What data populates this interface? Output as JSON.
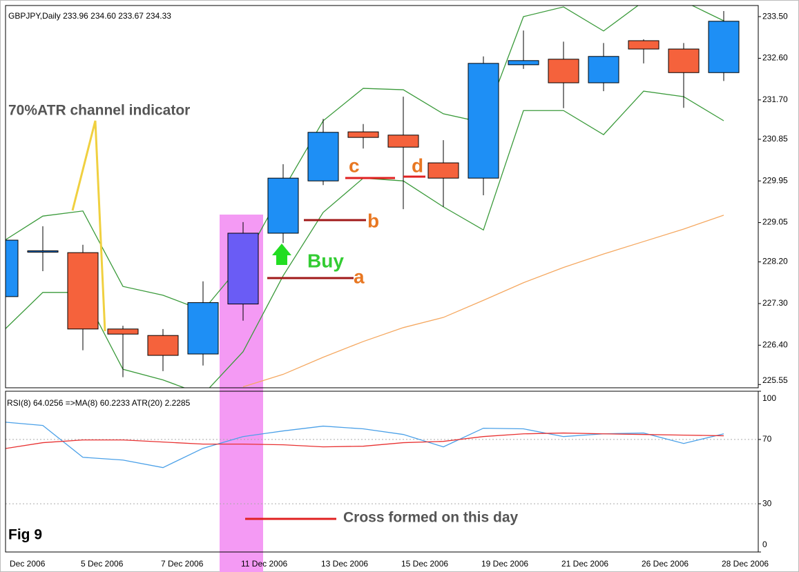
{
  "chart_data": [
    {
      "type": "candlestick",
      "title": "GBPJPY,Daily  233.96 234.60 233.67 234.33",
      "categories": [
        "Dec 2006",
        null,
        "5 Dec 2006",
        null,
        "7 Dec 2006",
        null,
        "11 Dec 2006",
        null,
        "13 Dec 2006",
        null,
        "15 Dec 2006",
        null,
        "19 Dec 2006",
        null,
        "21 Dec 2006",
        null,
        "26 Dec 2006",
        null,
        "28 Dec 2006"
      ],
      "open": [
        227.45,
        228.42,
        228.4,
        226.75,
        226.61,
        226.21,
        227.29,
        228.82,
        229.95,
        231.01,
        230.94,
        230.34,
        230.01,
        232.46,
        232.58,
        232.07,
        232.98,
        232.8,
        232.29
      ],
      "high": [
        228.7,
        228.97,
        228.57,
        226.82,
        226.75,
        227.78,
        229.06,
        230.31,
        231.29,
        231.18,
        231.77,
        230.83,
        232.64,
        233.2,
        232.96,
        232.93,
        233.01,
        232.93,
        233.62
      ],
      "low": [
        227.4,
        228.0,
        226.29,
        225.71,
        225.84,
        225.96,
        226.93,
        228.61,
        229.86,
        230.65,
        229.34,
        229.39,
        229.64,
        232.37,
        231.52,
        231.89,
        232.49,
        231.53,
        232.11
      ],
      "close": [
        228.67,
        228.44,
        226.75,
        226.64,
        226.18,
        227.32,
        228.82,
        230.01,
        231.0,
        230.89,
        230.68,
        230.01,
        232.49,
        232.55,
        232.07,
        232.64,
        232.8,
        232.29,
        233.4
      ],
      "colors": [
        "#1e8ff5",
        "#1e6fc8",
        "#f5623c",
        "#f5623c",
        "#f5623c",
        "#1e8ff5",
        "#6a5cf5",
        "#1e8ff5",
        "#1e8ff5",
        "#f5623c",
        "#f5623c",
        "#f5623c",
        "#1e8ff5",
        "#1e8ff5",
        "#f5623c",
        "#1e8ff5",
        "#f5623c",
        "#f5623c",
        "#1e8ff5"
      ],
      "overlays": [
        {
          "color": "#3a9a3a",
          "values": [
            228.64,
            229.19,
            229.3,
            227.67,
            227.48,
            227.15,
            228.19,
            229.76,
            231.25,
            231.95,
            231.92,
            231.4,
            231.21,
            233.5,
            233.71,
            233.19,
            233.83,
            233.83,
            233.41
          ]
        },
        {
          "color": "#3a9a3a",
          "values": [
            226.7,
            227.54,
            227.54,
            225.88,
            225.65,
            225.33,
            226.26,
            227.9,
            229.27,
            230.01,
            229.95,
            229.39,
            228.89,
            231.47,
            231.47,
            230.95,
            231.89,
            231.77,
            231.25
          ]
        },
        {
          "color": "#f5a860",
          "values": [
            null,
            null,
            null,
            null,
            null,
            null,
            225.5,
            225.77,
            226.14,
            226.48,
            226.78,
            227.0,
            227.37,
            227.75,
            228.08,
            228.37,
            228.64,
            228.91,
            229.21
          ]
        }
      ],
      "ylim": [
        225.48,
        233.74
      ],
      "yticks": [
        {
          "value": 233.5,
          "label": "233.50"
        },
        {
          "value": 232.6,
          "label": "232.60"
        },
        {
          "value": 231.7,
          "label": "231.70"
        },
        230.85,
        229.95,
        229.05,
        {
          "value": 228.2,
          "label": "228.20"
        },
        {
          "value": 227.3,
          "label": "227.30"
        },
        {
          "value": 226.4,
          "label": "226.40"
        },
        225.55
      ],
      "annotations": [
        "70%ATR channel indicator",
        "Buy",
        "a",
        "b",
        "c",
        "d"
      ]
    },
    {
      "type": "line",
      "title": "RSI(8) 64.0256  =>MA(8) 60.2233  ATR(20) 2.2285",
      "series": [
        {
          "color": "#4aa0e8",
          "values": [
            80.9,
            78.7,
            58.9,
            57.2,
            52.5,
            64.5,
            71.8,
            75.3,
            78.3,
            76.6,
            73.1,
            65.4,
            77.0,
            76.6,
            71.8,
            73.5,
            74.0,
            67.5,
            73.5
          ]
        },
        {
          "color": "#e83030",
          "values": [
            64.1,
            68.0,
            69.7,
            69.7,
            68.4,
            67.1,
            67.1,
            66.7,
            65.4,
            65.8,
            68.0,
            68.8,
            71.8,
            73.5,
            74.0,
            73.5,
            73.1,
            72.7,
            72.3
          ]
        }
      ],
      "ylim": [
        0,
        100
      ],
      "yticks": [
        0,
        30,
        70,
        100
      ],
      "grid": true,
      "annotations": [
        "Cross formed on this day",
        "Fig 9"
      ]
    }
  ]
}
